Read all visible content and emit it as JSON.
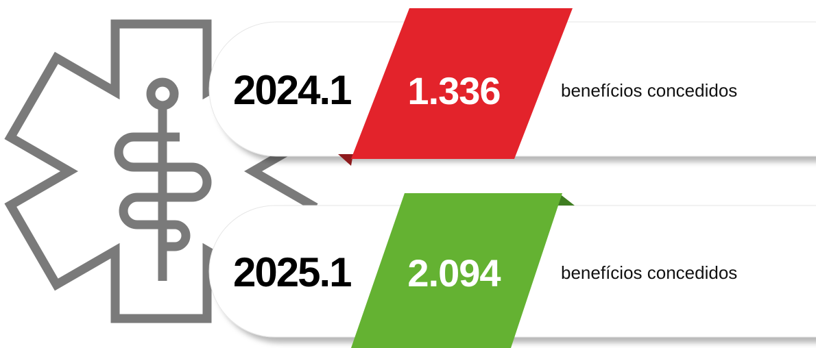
{
  "rows": [
    {
      "period": "2024.1",
      "value": "1.336",
      "label": "benefícios concedidos",
      "color": "#e3232b",
      "fold": "#8e1a1d"
    },
    {
      "period": "2025.1",
      "value": "2.094",
      "label": "benefícios concedidos",
      "color": "#64b232",
      "fold": "#3f7d21"
    }
  ]
}
